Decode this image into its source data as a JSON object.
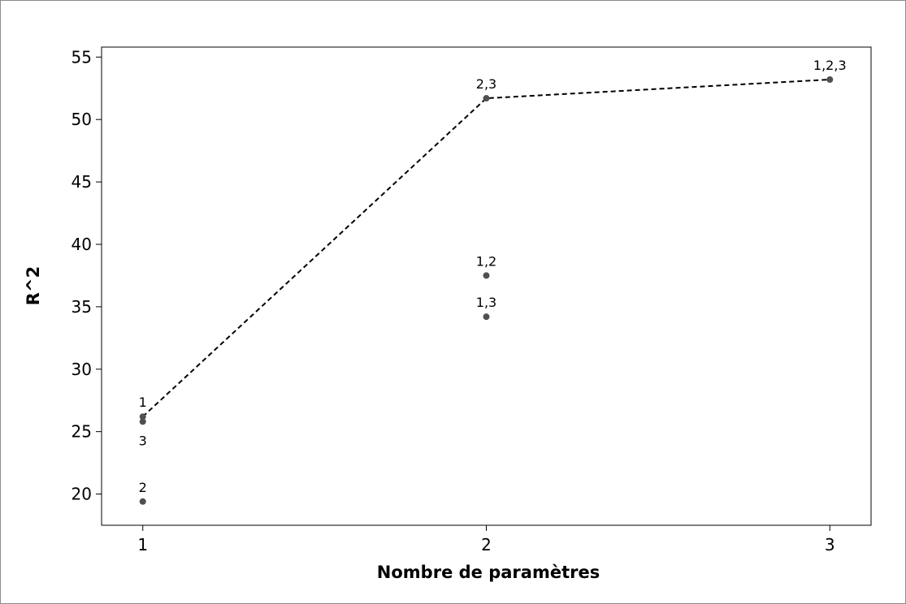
{
  "chart_data": {
    "type": "scatter",
    "title": "",
    "xlabel": "Nombre de paramètres",
    "ylabel": "R^2",
    "xlim": [
      0.88,
      3.12
    ],
    "ylim": [
      17.5,
      55.8
    ],
    "x_ticks": [
      1,
      2,
      3
    ],
    "y_ticks": [
      20,
      25,
      30,
      35,
      40,
      45,
      50,
      55
    ],
    "grid": false,
    "points": [
      {
        "x": 1,
        "y": 26.2,
        "label": "1",
        "label_pos": "above"
      },
      {
        "x": 1,
        "y": 25.8,
        "label": "3",
        "label_pos": "below"
      },
      {
        "x": 1,
        "y": 19.4,
        "label": "2",
        "label_pos": "above"
      },
      {
        "x": 2,
        "y": 51.7,
        "label": "2,3",
        "label_pos": "above"
      },
      {
        "x": 2,
        "y": 37.5,
        "label": "1,2",
        "label_pos": "above"
      },
      {
        "x": 2,
        "y": 34.2,
        "label": "1,3",
        "label_pos": "above"
      },
      {
        "x": 3,
        "y": 53.2,
        "label": "1,2,3",
        "label_pos": "above"
      }
    ],
    "best_line": {
      "x": [
        1,
        2,
        3
      ],
      "y": [
        26.2,
        51.7,
        53.2
      ],
      "style": "dashed",
      "color": "#000000"
    },
    "point_color": "#505050"
  }
}
